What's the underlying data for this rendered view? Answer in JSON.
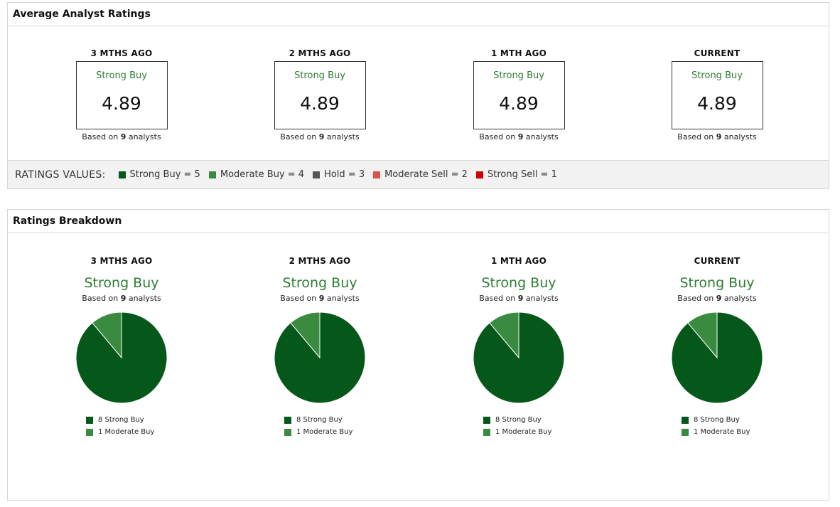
{
  "colors": {
    "strong_buy": "#05581a",
    "moderate_buy": "#3a8a40",
    "hold": "#555555",
    "moderate_sell": "#d9534f",
    "strong_sell": "#cc0000",
    "label_green": "#2e7d32"
  },
  "average": {
    "title": "Average Analyst Ratings",
    "columns": [
      {
        "period": "3 MTHS AGO",
        "rating": "Strong Buy",
        "value": "4.89",
        "based_prefix": "Based on",
        "count": "9",
        "based_suffix": "analysts"
      },
      {
        "period": "2 MTHS AGO",
        "rating": "Strong Buy",
        "value": "4.89",
        "based_prefix": "Based on",
        "count": "9",
        "based_suffix": "analysts"
      },
      {
        "period": "1 MTH AGO",
        "rating": "Strong Buy",
        "value": "4.89",
        "based_prefix": "Based on",
        "count": "9",
        "based_suffix": "analysts"
      },
      {
        "period": "CURRENT",
        "rating": "Strong Buy",
        "value": "4.89",
        "based_prefix": "Based on",
        "count": "9",
        "based_suffix": "analysts"
      }
    ],
    "values_title": "RATINGS VALUES:",
    "values": [
      {
        "label": "Strong Buy = 5",
        "color": "#05581a"
      },
      {
        "label": "Moderate Buy = 4",
        "color": "#3a8a40"
      },
      {
        "label": "Hold = 3",
        "color": "#555555"
      },
      {
        "label": "Moderate Sell = 2",
        "color": "#d9534f"
      },
      {
        "label": "Strong Sell = 1",
        "color": "#cc0000"
      }
    ]
  },
  "breakdown": {
    "title": "Ratings Breakdown",
    "columns": [
      {
        "period": "3 MTHS AGO",
        "rating": "Strong Buy",
        "based_prefix": "Based on",
        "count": "9",
        "based_suffix": "analysts",
        "legend": [
          "8 Strong Buy",
          "1 Moderate Buy"
        ]
      },
      {
        "period": "2 MTHS AGO",
        "rating": "Strong Buy",
        "based_prefix": "Based on",
        "count": "9",
        "based_suffix": "analysts",
        "legend": [
          "8 Strong Buy",
          "1 Moderate Buy"
        ]
      },
      {
        "period": "1 MTH AGO",
        "rating": "Strong Buy",
        "based_prefix": "Based on",
        "count": "9",
        "based_suffix": "analysts",
        "legend": [
          "8 Strong Buy",
          "1 Moderate Buy"
        ]
      },
      {
        "period": "CURRENT",
        "rating": "Strong Buy",
        "based_prefix": "Based on",
        "count": "9",
        "based_suffix": "analysts",
        "legend": [
          "8 Strong Buy",
          "1 Moderate Buy"
        ]
      }
    ]
  },
  "chart_data": [
    {
      "type": "pie",
      "title": "3 MTHS AGO",
      "labels": [
        "Strong Buy",
        "Moderate Buy"
      ],
      "values": [
        8,
        1
      ],
      "colors": [
        "#05581a",
        "#3a8a40"
      ]
    },
    {
      "type": "pie",
      "title": "2 MTHS AGO",
      "labels": [
        "Strong Buy",
        "Moderate Buy"
      ],
      "values": [
        8,
        1
      ],
      "colors": [
        "#05581a",
        "#3a8a40"
      ]
    },
    {
      "type": "pie",
      "title": "1 MTH AGO",
      "labels": [
        "Strong Buy",
        "Moderate Buy"
      ],
      "values": [
        8,
        1
      ],
      "colors": [
        "#05581a",
        "#3a8a40"
      ]
    },
    {
      "type": "pie",
      "title": "CURRENT",
      "labels": [
        "Strong Buy",
        "Moderate Buy"
      ],
      "values": [
        8,
        1
      ],
      "colors": [
        "#05581a",
        "#3a8a40"
      ]
    }
  ]
}
